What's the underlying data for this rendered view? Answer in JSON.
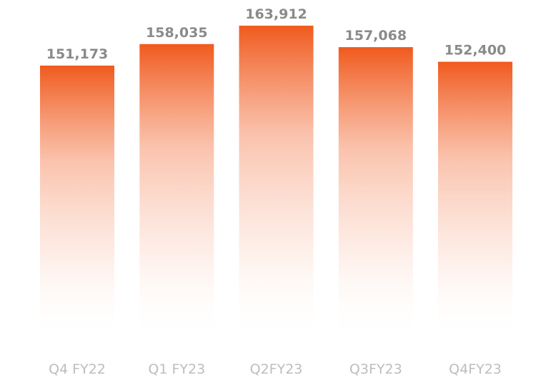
{
  "chart_data": {
    "type": "bar",
    "categories": [
      "Q4 FY22",
      "Q1 FY23",
      "Q2FY23",
      "Q3FY23",
      "Q4FY23"
    ],
    "values": [
      151173,
      158035,
      163912,
      157068,
      152400
    ],
    "value_labels": [
      "151,173",
      "158,035",
      "163,912",
      "157,068",
      "152,400"
    ],
    "title": "",
    "xlabel": "",
    "ylabel": "",
    "ylim": [
      0,
      180000
    ],
    "grid": false,
    "legend": "none",
    "colors": {
      "bar_top": "#f05a1e",
      "bar_bottom": "#ffffff",
      "value_text": "#8a8a8a",
      "category_text": "#bdbdbd"
    }
  }
}
